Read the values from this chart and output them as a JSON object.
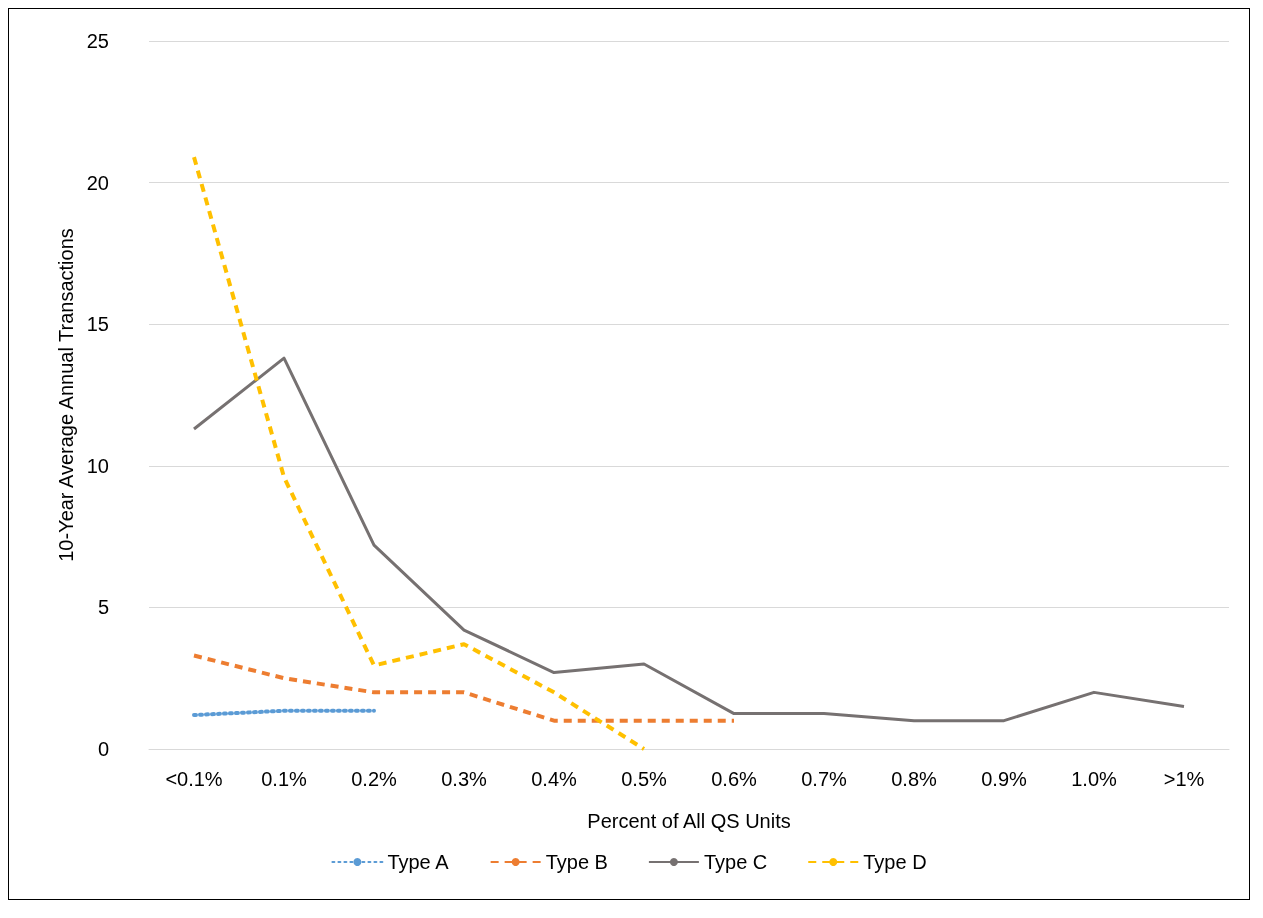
{
  "chart_data": {
    "type": "line",
    "xlabel": "Percent of All QS Units",
    "ylabel": "10-Year Average Annual Transactions",
    "categories": [
      "<0.1%",
      "0.1%",
      "0.2%",
      "0.3%",
      "0.4%",
      "0.5%",
      "0.6%",
      "0.7%",
      "0.8%",
      "0.9%",
      "1.0%",
      ">1%"
    ],
    "series": [
      {
        "name": "Type A",
        "color": "#5b9bd5",
        "line_style": "dotted",
        "values": [
          1.2,
          1.35,
          1.35,
          null,
          null,
          null,
          null,
          null,
          null,
          null,
          null,
          null
        ]
      },
      {
        "name": "Type B",
        "color": "#ed7d31",
        "line_style": "dashed",
        "values": [
          3.3,
          2.5,
          2.0,
          2.0,
          1.0,
          1.0,
          1.0,
          null,
          null,
          null,
          null,
          null
        ]
      },
      {
        "name": "Type C",
        "color": "#767171",
        "line_style": "solid",
        "values": [
          11.3,
          13.8,
          7.2,
          4.2,
          2.7,
          3.0,
          1.25,
          1.25,
          1.0,
          1.0,
          2.0,
          1.5
        ]
      },
      {
        "name": "Type D",
        "color": "#ffc000",
        "line_style": "dashed",
        "values": [
          20.9,
          9.6,
          2.95,
          3.7,
          2.0,
          0,
          null,
          null,
          null,
          null,
          null,
          null
        ]
      }
    ],
    "ylim": [
      0,
      25
    ],
    "yticks": [
      0,
      5,
      10,
      15,
      20,
      25
    ],
    "grid": "y",
    "legend": "bottom",
    "marker": "none"
  }
}
